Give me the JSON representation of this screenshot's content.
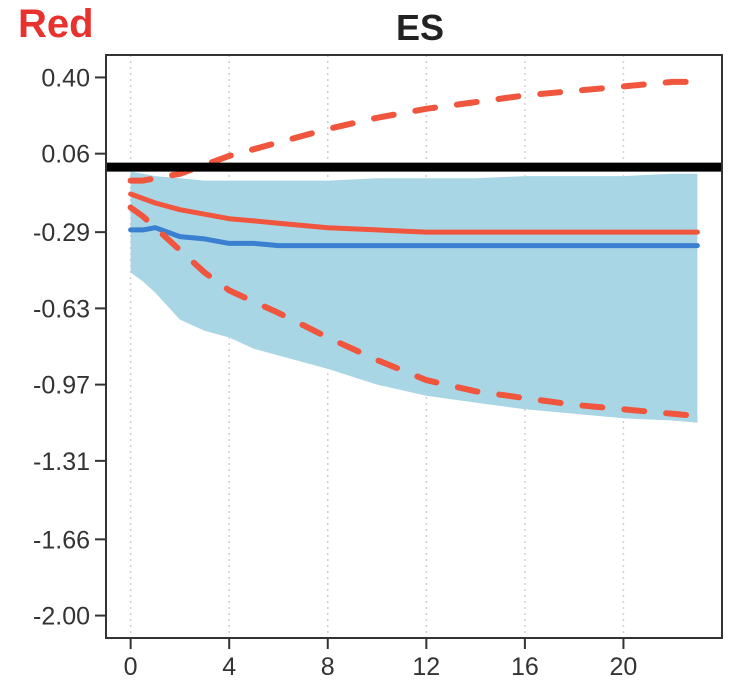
{
  "corner_label": "Red",
  "colors": {
    "red_series": "#f0553e",
    "blue_series": "#3a7fd0",
    "band": "#a9d6e5",
    "zero_line": "#000000",
    "grid": "#cfcfcf",
    "corner_label": "#e8322d"
  },
  "chart_data": {
    "type": "line",
    "title": "ES",
    "xlabel": "",
    "ylabel": "",
    "xlim": [
      -1,
      24
    ],
    "ylim": [
      -2.1,
      0.5
    ],
    "xticks": [
      0,
      4,
      8,
      12,
      16,
      20
    ],
    "yticks": [
      0.4,
      0.06,
      -0.29,
      -0.63,
      -0.97,
      -1.31,
      -1.66,
      -2.0
    ],
    "ytick_labels": [
      "0.40",
      "0.06",
      "-0.29",
      "-0.63",
      "-0.97",
      "-1.31",
      "-1.66",
      "-2.00"
    ],
    "grid": "vertical dotted",
    "zero_line": 0,
    "x": [
      0,
      0.5,
      1,
      2,
      3,
      4,
      5,
      6,
      8,
      10,
      12,
      14,
      16,
      18,
      20,
      22,
      23
    ],
    "band": {
      "upper": [
        -0.02,
        -0.03,
        -0.04,
        -0.05,
        -0.06,
        -0.06,
        -0.06,
        -0.06,
        -0.06,
        -0.05,
        -0.05,
        -0.05,
        -0.04,
        -0.04,
        -0.04,
        -0.03,
        -0.03
      ],
      "lower": [
        -0.47,
        -0.51,
        -0.56,
        -0.68,
        -0.73,
        -0.76,
        -0.81,
        -0.84,
        -0.9,
        -0.97,
        -1.02,
        -1.05,
        -1.08,
        -1.1,
        -1.12,
        -1.13,
        -1.14
      ]
    },
    "series": [
      {
        "style": "solid",
        "color": "red",
        "values": [
          -0.12,
          -0.14,
          -0.16,
          -0.19,
          -0.21,
          -0.23,
          -0.24,
          -0.25,
          -0.27,
          -0.28,
          -0.29,
          -0.29,
          -0.29,
          -0.29,
          -0.29,
          -0.29,
          -0.29
        ]
      },
      {
        "style": "solid",
        "color": "blue",
        "values": [
          -0.28,
          -0.28,
          -0.27,
          -0.31,
          -0.32,
          -0.34,
          -0.34,
          -0.35,
          -0.35,
          -0.35,
          -0.35,
          -0.35,
          -0.35,
          -0.35,
          -0.35,
          -0.35,
          -0.35
        ]
      },
      {
        "style": "dashed",
        "color": "red",
        "values": [
          -0.18,
          -0.22,
          -0.27,
          -0.37,
          -0.47,
          -0.55,
          -0.6,
          -0.65,
          -0.76,
          -0.86,
          -0.95,
          -1.0,
          -1.03,
          -1.06,
          -1.08,
          -1.1,
          -1.11
        ]
      },
      {
        "style": "dashed",
        "color": "red",
        "values": [
          -0.06,
          -0.06,
          -0.05,
          -0.03,
          0.01,
          0.05,
          0.08,
          0.11,
          0.17,
          0.22,
          0.26,
          0.29,
          0.32,
          0.34,
          0.36,
          0.38,
          0.38
        ]
      }
    ]
  }
}
